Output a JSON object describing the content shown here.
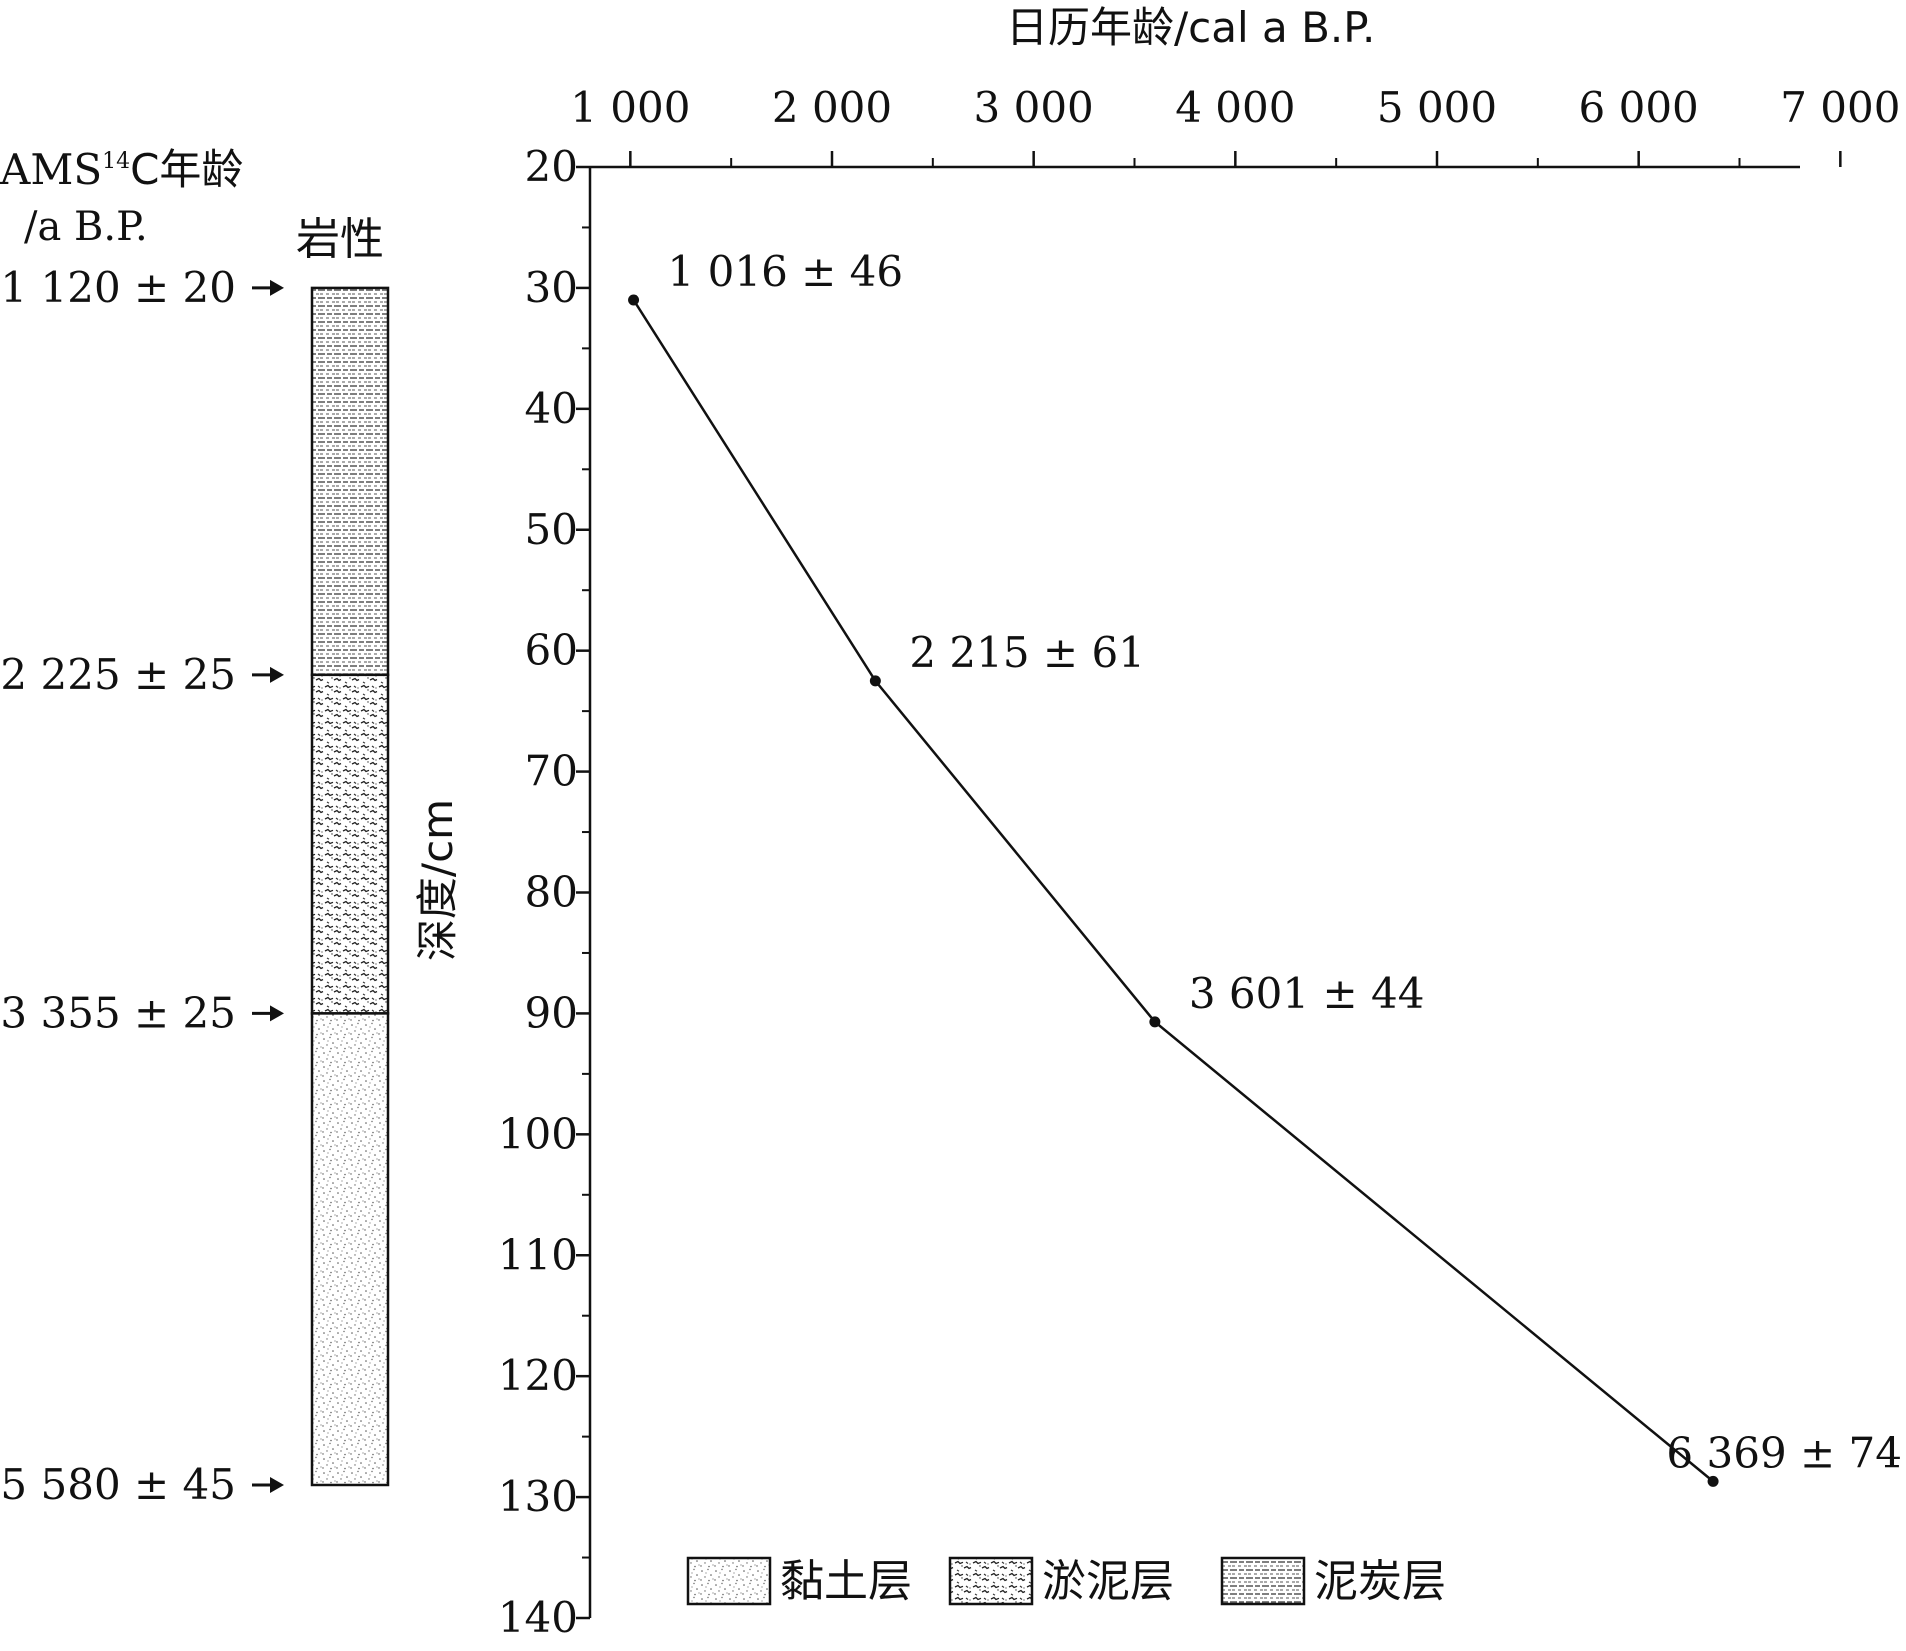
{
  "chart_data": {
    "type": "line",
    "title": "",
    "xlabel": "日历年龄/cal a B.P.",
    "ylabel": "深度/cm",
    "xlim": [
      800,
      6800
    ],
    "ylim": [
      20,
      140
    ],
    "x_ticks": [
      "1 000",
      "2 000",
      "3 000",
      "4 000",
      "5 000",
      "6 000",
      "7 000"
    ],
    "x_tick_values": [
      1000,
      2000,
      3000,
      4000,
      5000,
      6000,
      7000
    ],
    "y_ticks": [
      "20",
      "30",
      "40",
      "50",
      "60",
      "70",
      "80",
      "90",
      "100",
      "110",
      "120",
      "130",
      "140"
    ],
    "y_tick_values": [
      20,
      30,
      40,
      50,
      60,
      70,
      80,
      90,
      100,
      110,
      120,
      130,
      140
    ],
    "grid": false,
    "legend_position": "bottom",
    "series": [
      {
        "x": [
          1016,
          2215,
          3601,
          6369
        ],
        "y": [
          31,
          62.5,
          90.7,
          128.7
        ],
        "point_labels": [
          "1 016 ± 46",
          "2 215 ± 61",
          "3 601 ± 44",
          "6 369 ± 74"
        ]
      }
    ]
  },
  "lithology": {
    "ams_label_main": "AMS",
    "ams_label_sup": "14",
    "ams_label_rest": "C年龄",
    "ams_unit": "/a B.P.",
    "column_title": "岩性",
    "dates": [
      {
        "label": "1 120 ± 20",
        "depth": 30
      },
      {
        "label": "2 225 ± 25",
        "depth": 62
      },
      {
        "label": "3 355 ± 25",
        "depth": 90
      },
      {
        "label": "5 580 ± 45",
        "depth": 129
      }
    ],
    "layers": [
      {
        "name": "泥炭层",
        "pattern": "peat",
        "top": 30,
        "bottom": 62
      },
      {
        "name": "淤泥层",
        "pattern": "silt",
        "top": 62,
        "bottom": 90
      },
      {
        "name": "黏土层",
        "pattern": "clay",
        "top": 90,
        "bottom": 129
      }
    ]
  },
  "legend": [
    {
      "label": "黏土层",
      "pattern": "clay"
    },
    {
      "label": "淤泥层",
      "pattern": "silt"
    },
    {
      "label": "泥炭层",
      "pattern": "peat"
    }
  ]
}
